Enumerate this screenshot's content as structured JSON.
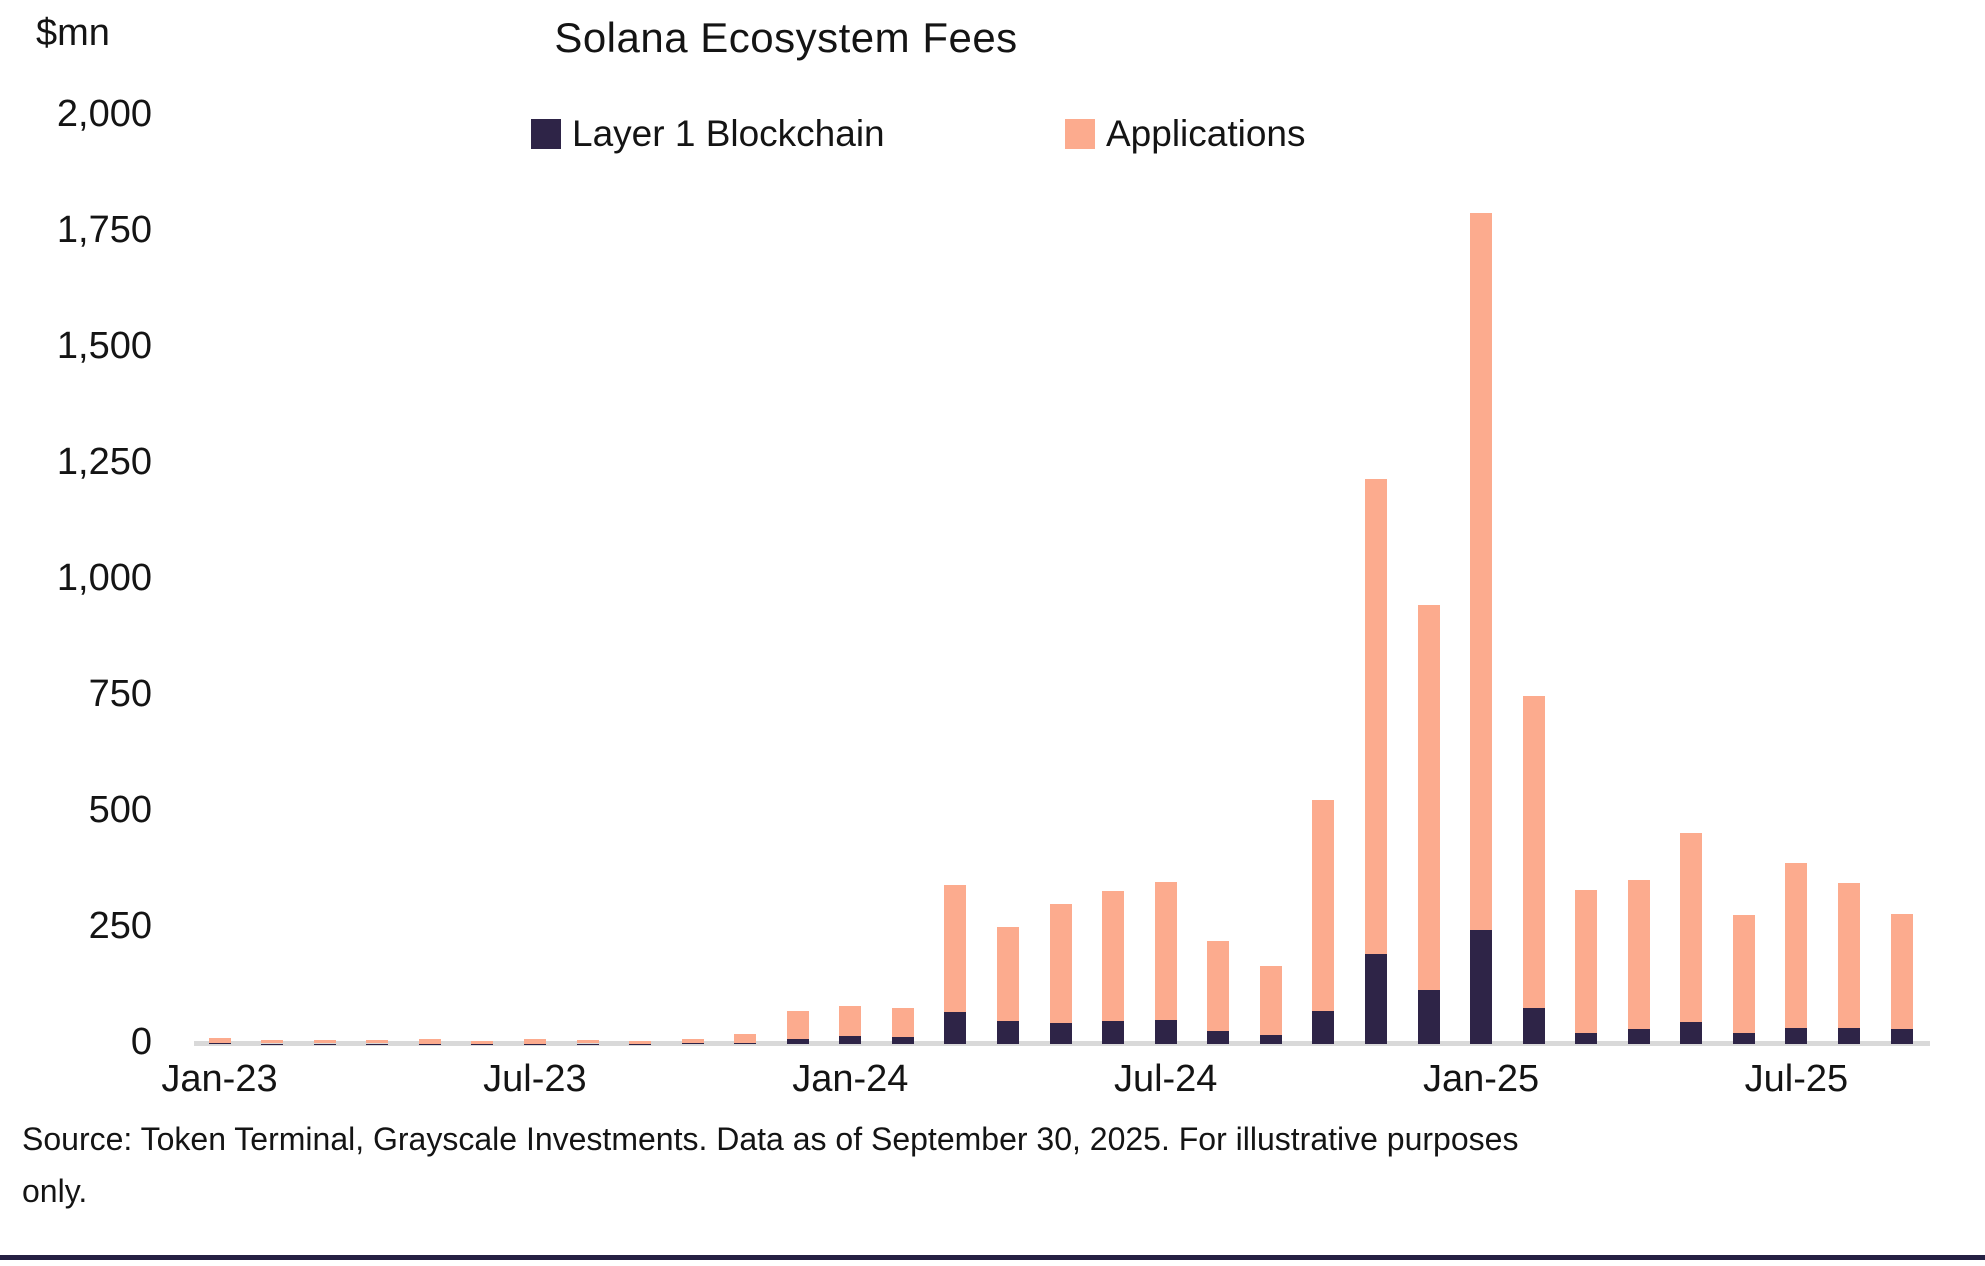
{
  "page": {
    "units_label": "$mn",
    "source": {
      "line1": "Source: Token Terminal, Grayscale Investments. Data as of September 30, 2025. For illustrative purposes",
      "line2": "only."
    }
  },
  "chart_data": {
    "type": "bar",
    "stacked": true,
    "title": "Solana Ecosystem Fees",
    "ylabel": "$mn",
    "xlabel": "",
    "ylim": [
      0,
      2000
    ],
    "ytick_step": 250,
    "grid": false,
    "legend_position": "top-center",
    "axis_line_color": "#d9d9d9",
    "categories": [
      "Jan-23",
      "Feb-23",
      "Mar-23",
      "Apr-23",
      "May-23",
      "Jun-23",
      "Jul-23",
      "Aug-23",
      "Sep-23",
      "Oct-23",
      "Nov-23",
      "Dec-23",
      "Jan-24",
      "Feb-24",
      "Mar-24",
      "Apr-24",
      "May-24",
      "Jun-24",
      "Jul-24",
      "Aug-24",
      "Sep-24",
      "Oct-24",
      "Nov-24",
      "Dec-24",
      "Jan-25",
      "Feb-25",
      "Mar-25",
      "Apr-25",
      "May-25",
      "Jun-25",
      "Jul-25",
      "Aug-25",
      "Sep-25"
    ],
    "visible_xticks": [
      "Jan-23",
      "Jul-23",
      "Jan-24",
      "Jul-24",
      "Jan-25",
      "Jul-25"
    ],
    "series": [
      {
        "name": "Layer 1 Blockchain",
        "color": "#2e2447",
        "values": [
          2,
          1,
          1,
          1,
          1,
          1,
          1,
          1,
          1,
          2,
          3,
          11,
          17,
          15,
          69,
          50,
          45,
          50,
          52,
          28,
          19,
          71,
          194,
          116,
          246,
          78,
          24,
          32,
          47,
          24,
          35,
          35,
          32
        ]
      },
      {
        "name": "Applications",
        "color": "#fcab8e",
        "values": [
          11,
          7,
          7,
          7,
          9,
          6,
          9,
          8,
          6,
          8,
          18,
          60,
          65,
          63,
          274,
          202,
          257,
          280,
          297,
          194,
          149,
          455,
          1024,
          830,
          1545,
          672,
          308,
          321,
          408,
          254,
          355,
          312,
          248
        ]
      }
    ],
    "totals": [
      13,
      8,
      8,
      8,
      10,
      7,
      10,
      9,
      7,
      10,
      21,
      71,
      82,
      78,
      343,
      252,
      302,
      330,
      349,
      222,
      168,
      526,
      1218,
      946,
      1791,
      750,
      332,
      353,
      455,
      278,
      390,
      347,
      280
    ]
  }
}
